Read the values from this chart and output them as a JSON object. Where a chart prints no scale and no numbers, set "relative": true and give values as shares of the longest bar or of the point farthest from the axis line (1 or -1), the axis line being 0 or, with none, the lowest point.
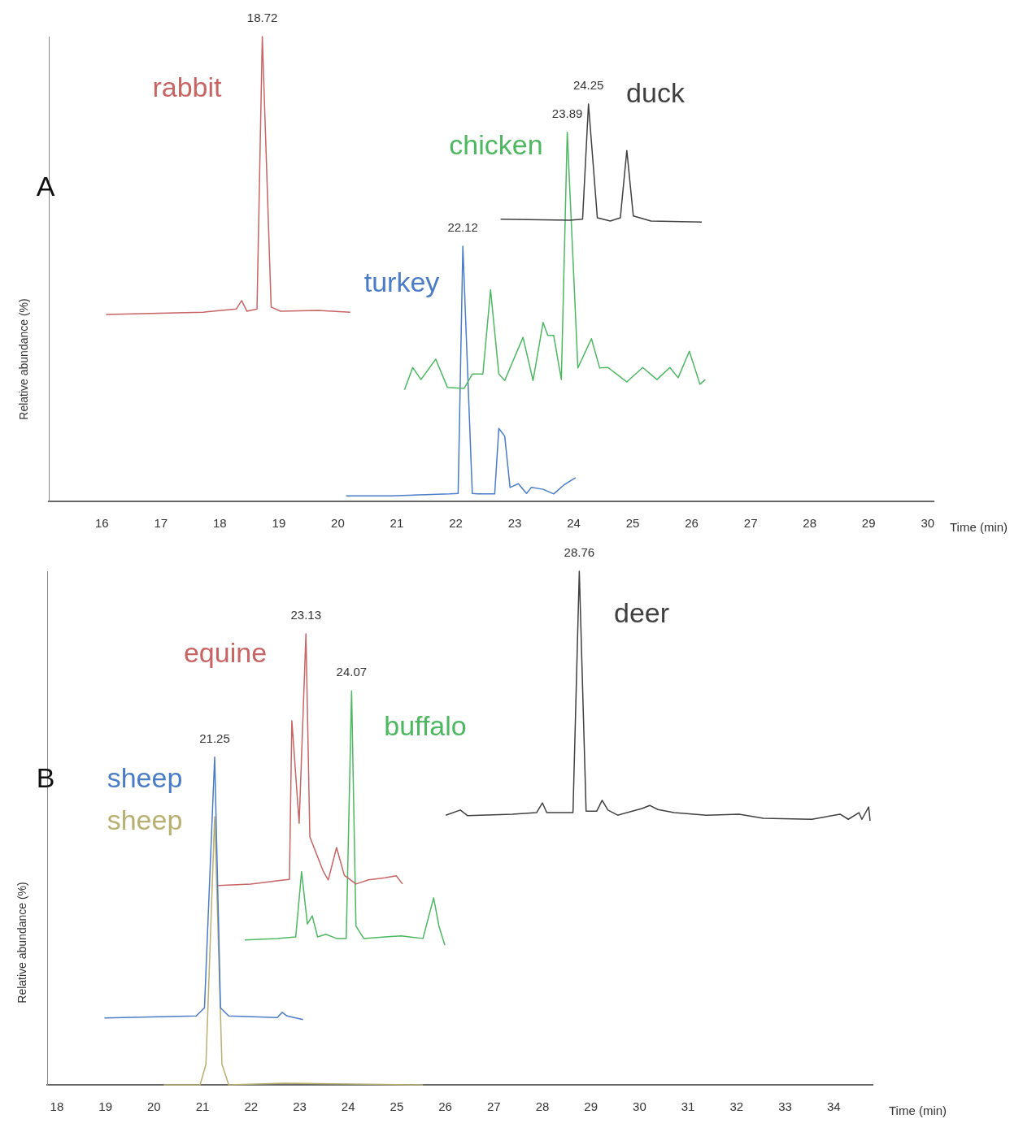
{
  "chart_data": [
    {
      "type": "line",
      "relative": true,
      "xlabel": "Time (min)",
      "ylabel": "Relative abundance (%)",
      "xlim": [
        15.1,
        30.1
      ],
      "xticks": [
        16,
        17,
        18,
        19,
        20,
        21,
        22,
        23,
        24,
        25,
        26,
        27,
        28,
        29,
        30
      ],
      "tick_labels": "x",
      "marker": "none",
      "annotations": [
        "A",
        {
          "text": "18.72",
          "x": 18.72,
          "y": 1.0
        },
        {
          "text": "24.25",
          "x": 24.25,
          "y": 0.855
        },
        {
          "text": "23.89",
          "x": 23.89,
          "y": 0.794
        },
        {
          "text": "22.12",
          "x": 22.12,
          "y": 0.549
        }
      ],
      "series": [
        {
          "name": "rabbit",
          "color": "#c86464",
          "x": [
            16.07,
            17.72,
            18.28,
            18.37,
            18.46,
            18.63,
            18.72,
            18.87,
            19.03,
            19.66,
            20.21
          ],
          "values": [
            0.402,
            0.407,
            0.414,
            0.432,
            0.409,
            0.414,
            1.0,
            0.418,
            0.409,
            0.411,
            0.407
          ]
        },
        {
          "name": "duck",
          "color": "#404040",
          "x": [
            22.76,
            23.93,
            24.15,
            24.25,
            24.4,
            24.62,
            24.79,
            24.9,
            25.01,
            25.31,
            26.17
          ],
          "values": [
            0.607,
            0.605,
            0.607,
            0.855,
            0.61,
            0.603,
            0.61,
            0.755,
            0.614,
            0.603,
            0.601
          ]
        },
        {
          "name": "chicken",
          "color": "#4cb860",
          "x": [
            21.13,
            21.27,
            21.41,
            21.66,
            21.86,
            22.14,
            22.28,
            22.46,
            22.59,
            22.73,
            22.83,
            23.14,
            23.31,
            23.48,
            23.56,
            23.66,
            23.79,
            23.89,
            24.07,
            24.3,
            24.44,
            24.58,
            24.9,
            25.17,
            25.41,
            25.63,
            25.77,
            25.96,
            26.14,
            26.23
          ],
          "values": [
            0.24,
            0.288,
            0.262,
            0.306,
            0.245,
            0.243,
            0.274,
            0.274,
            0.455,
            0.274,
            0.26,
            0.353,
            0.26,
            0.385,
            0.357,
            0.357,
            0.262,
            0.794,
            0.287,
            0.35,
            0.287,
            0.288,
            0.257,
            0.288,
            0.262,
            0.288,
            0.266,
            0.323,
            0.252,
            0.262
          ]
        },
        {
          "name": "turkey",
          "color": "#4a7cc8",
          "x": [
            20.14,
            20.9,
            21.9,
            22.04,
            22.12,
            22.28,
            22.37,
            22.66,
            22.73,
            22.83,
            22.92,
            23.06,
            23.2,
            23.28,
            23.48,
            23.66,
            23.83,
            24.03
          ],
          "values": [
            0.012,
            0.012,
            0.016,
            0.017,
            0.549,
            0.017,
            0.016,
            0.016,
            0.157,
            0.14,
            0.03,
            0.038,
            0.017,
            0.03,
            0.026,
            0.016,
            0.035,
            0.051
          ]
        }
      ]
    },
    {
      "type": "line",
      "relative": true,
      "xlabel": "Time (min)",
      "ylabel": "Relative abundance (%)",
      "xlim": [
        17.8,
        34.8
      ],
      "xticks": [
        18,
        19,
        20,
        21,
        22,
        23,
        24,
        25,
        26,
        27,
        28,
        29,
        30,
        31,
        32,
        33,
        34
      ],
      "tick_labels": "x",
      "marker": "none",
      "annotations": [
        "B",
        {
          "text": "28.76",
          "x": 28.76,
          "y": 1.0
        },
        {
          "text": "23.13",
          "x": 23.13,
          "y": 0.878
        },
        {
          "text": "24.07",
          "x": 24.07,
          "y": 0.767
        },
        {
          "text": "21.25",
          "x": 21.25,
          "y": 0.638
        }
      ],
      "series": [
        {
          "name": "deer",
          "color": "#404040",
          "x": [
            26.01,
            26.31,
            26.46,
            27.38,
            27.88,
            28.0,
            28.09,
            28.63,
            28.76,
            28.9,
            29.12,
            29.23,
            29.35,
            29.55,
            30.05,
            30.21,
            30.38,
            30.71,
            31.38,
            32.05,
            32.55,
            33.55,
            34.13,
            34.3,
            34.52,
            34.58,
            34.72,
            34.75
          ],
          "values": [
            0.525,
            0.535,
            0.524,
            0.527,
            0.53,
            0.549,
            0.53,
            0.53,
            1.0,
            0.533,
            0.533,
            0.554,
            0.535,
            0.525,
            0.538,
            0.544,
            0.536,
            0.53,
            0.525,
            0.527,
            0.519,
            0.517,
            0.527,
            0.517,
            0.53,
            0.517,
            0.541,
            0.514
          ]
        },
        {
          "name": "equine",
          "color": "#c86464",
          "x": [
            21.32,
            21.99,
            22.7,
            22.79,
            22.84,
            22.99,
            23.13,
            23.21,
            23.32,
            23.49,
            23.59,
            23.76,
            23.92,
            24.16,
            24.42,
            24.76,
            24.99,
            25.12
          ],
          "values": [
            0.388,
            0.391,
            0.399,
            0.4,
            0.709,
            0.509,
            0.878,
            0.483,
            0.456,
            0.415,
            0.399,
            0.462,
            0.408,
            0.391,
            0.399,
            0.403,
            0.407,
            0.391
          ]
        },
        {
          "name": "buffalo",
          "color": "#4cb860",
          "x": [
            21.87,
            22.54,
            22.92,
            23.04,
            23.16,
            23.26,
            23.37,
            23.54,
            23.76,
            23.96,
            24.07,
            24.16,
            24.32,
            24.76,
            25.09,
            25.54,
            25.76,
            25.87,
            25.99
          ],
          "values": [
            0.282,
            0.285,
            0.288,
            0.415,
            0.313,
            0.329,
            0.288,
            0.293,
            0.285,
            0.285,
            0.767,
            0.309,
            0.285,
            0.288,
            0.29,
            0.285,
            0.364,
            0.309,
            0.272
          ]
        },
        {
          "name": "sheep",
          "color": "#4a7cc8",
          "x": [
            18.98,
            20.87,
            21.04,
            21.25,
            21.37,
            21.54,
            22.54,
            22.64,
            22.74,
            23.07
          ],
          "values": [
            0.13,
            0.134,
            0.15,
            0.638,
            0.15,
            0.134,
            0.131,
            0.141,
            0.134,
            0.127
          ]
        },
        {
          "name": "sheep",
          "color": "#b8b070",
          "x": [
            20.2,
            20.95,
            21.07,
            21.25,
            21.4,
            21.54,
            22.7,
            25.54
          ],
          "values": [
            0,
            0,
            0.04,
            0.522,
            0.04,
            0,
            0.003,
            0
          ]
        }
      ]
    }
  ]
}
